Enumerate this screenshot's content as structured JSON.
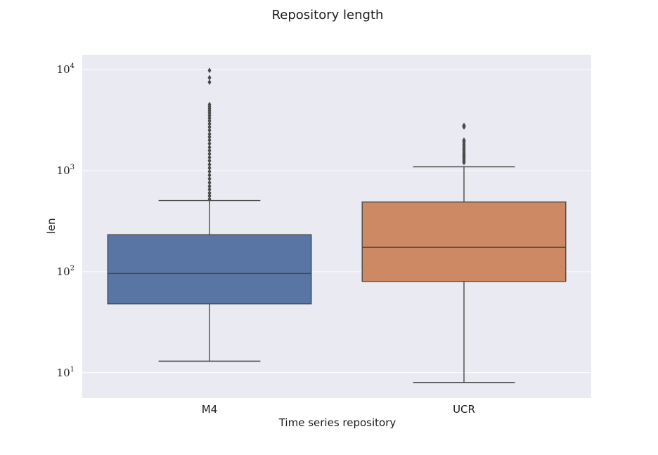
{
  "chart_data": {
    "type": "boxplot",
    "title": "Repository length",
    "xlabel": "Time series repository",
    "ylabel": "len",
    "yscale": "log",
    "ylim": [
      5.6,
      14000
    ],
    "yticks": [
      {
        "value": 10,
        "base": "10",
        "exp": "1"
      },
      {
        "value": 100,
        "base": "10",
        "exp": "2"
      },
      {
        "value": 1000,
        "base": "10",
        "exp": "3"
      },
      {
        "value": 10000,
        "base": "10",
        "exp": "4"
      }
    ],
    "grid": true,
    "background_color": "#eaeaf2",
    "grid_color": "#ffffff",
    "line_color": "#4a4a4a",
    "categories": [
      "M4",
      "UCR"
    ],
    "boxes": [
      {
        "name": "M4",
        "color": "#5875a4",
        "whisker_low": 13,
        "q1": 48,
        "median": 96,
        "q3": 232,
        "whisker_high": 506,
        "outliers": [
          520,
          560,
          600,
          650,
          700,
          760,
          830,
          900,
          980,
          1060,
          1150,
          1250,
          1350,
          1460,
          1580,
          1700,
          1850,
          2000,
          2150,
          2300,
          2500,
          2700,
          2900,
          3100,
          3300,
          3500,
          3700,
          3900,
          4100,
          4300,
          4500,
          7500,
          8300,
          9800
        ]
      },
      {
        "name": "UCR",
        "color": "#cc8963",
        "whisker_low": 8,
        "q1": 80,
        "median": 174,
        "q3": 489,
        "whisker_high": 1090,
        "outliers": [
          1200,
          1250,
          1300,
          1350,
          1400,
          1450,
          1500,
          1570,
          1640,
          1720,
          1800,
          1880,
          1960,
          2000,
          2700,
          2750,
          2800
        ]
      }
    ]
  }
}
